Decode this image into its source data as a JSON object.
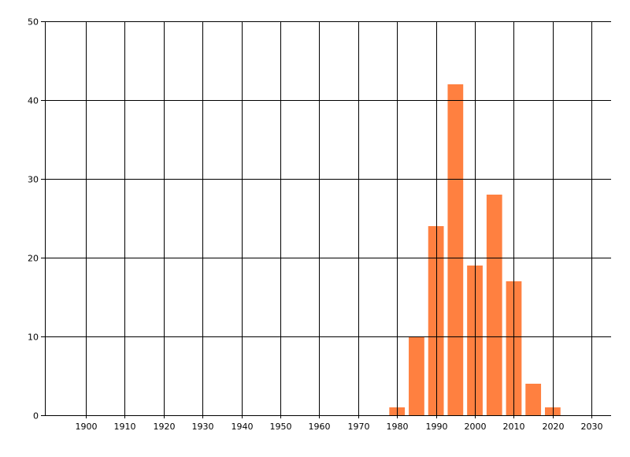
{
  "chart_data": {
    "type": "bar",
    "title": "",
    "xlabel": "",
    "ylabel": "",
    "x": [
      1980,
      1985,
      1990,
      1995,
      2000,
      2005,
      2010,
      2015,
      2020
    ],
    "values": [
      1,
      10,
      24,
      42,
      19,
      28,
      17,
      4,
      1
    ],
    "bar_width_years": 4,
    "xlim": [
      1889.5,
      2035
    ],
    "ylim": [
      0,
      50
    ],
    "xticks": [
      1900,
      1910,
      1920,
      1930,
      1940,
      1950,
      1960,
      1970,
      1980,
      1990,
      2000,
      2010,
      2020,
      2030
    ],
    "yticks": [
      0,
      10,
      20,
      30,
      40,
      50
    ],
    "grid": true,
    "legend": "none",
    "colors": {
      "bar": "#FF8040",
      "grid": "#000000"
    }
  }
}
